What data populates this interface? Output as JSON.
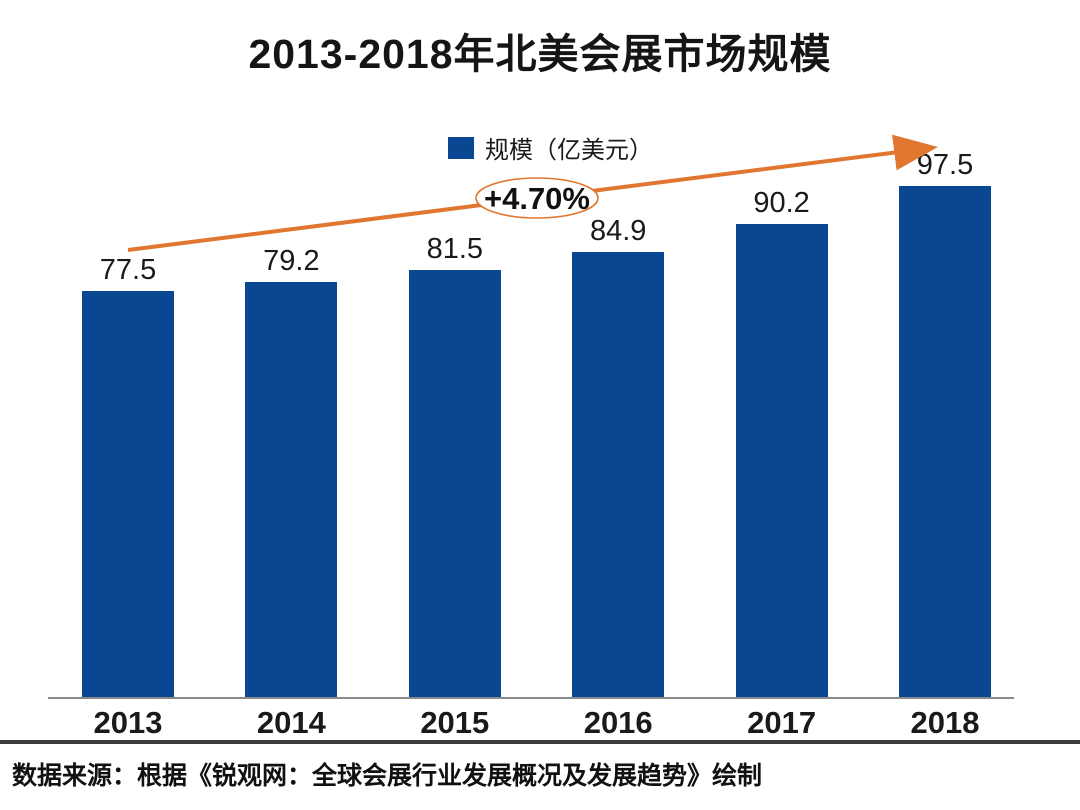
{
  "title": "2013-2018年北美会展市场规模",
  "legend": {
    "label": "规模（亿美元）"
  },
  "chart_data": {
    "type": "bar",
    "title": "2013-2018年北美会展市场规模",
    "categories": [
      "2013",
      "2014",
      "2015",
      "2016",
      "2017",
      "2018"
    ],
    "values": [
      77.5,
      79.2,
      81.5,
      84.9,
      90.2,
      97.5
    ],
    "series_name": "规模（亿美元）",
    "xlabel": "",
    "ylabel": "",
    "ylim": [
      0,
      110
    ],
    "grid": false,
    "y_axis_visible": false,
    "data_labels_visible": true,
    "legend_position": "top-center",
    "bar_color": "#0a4793",
    "trend": {
      "label": "+4.70%",
      "color": "#e0762f"
    }
  },
  "footer": {
    "source": "数据来源：根据《锐观网：全球会展行业发展概况及发展趋势》绘制"
  }
}
